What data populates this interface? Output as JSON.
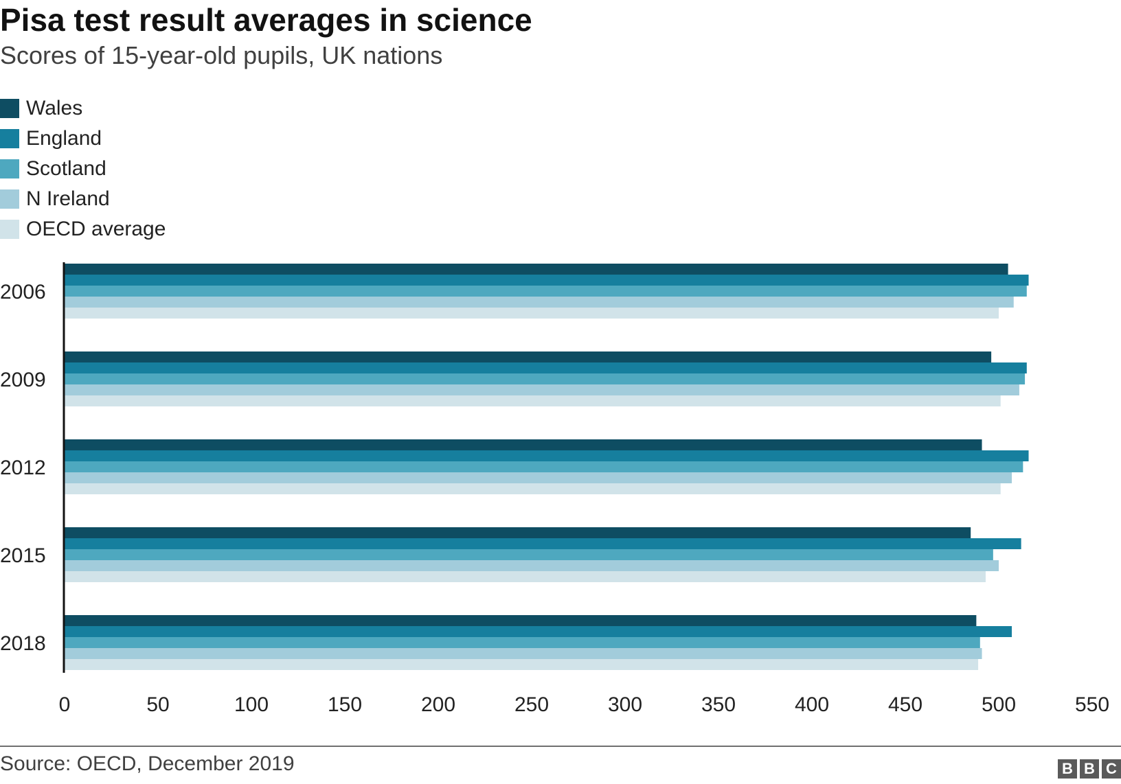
{
  "chart_data": {
    "type": "bar",
    "orientation": "horizontal",
    "title": "Pisa test result averages in science",
    "subtitle": "Scores of 15-year-old pupils, UK nations",
    "categories": [
      "2006",
      "2009",
      "2012",
      "2015",
      "2018"
    ],
    "series": [
      {
        "name": "Wales",
        "color": "#0e4d62",
        "values": [
          505,
          496,
          491,
          485,
          488
        ]
      },
      {
        "name": "England",
        "color": "#167f9e",
        "values": [
          516,
          515,
          516,
          512,
          507
        ]
      },
      {
        "name": "Scotland",
        "color": "#4ea8bf",
        "values": [
          515,
          514,
          513,
          497,
          490
        ]
      },
      {
        "name": "N Ireland",
        "color": "#a2ccdb",
        "values": [
          508,
          511,
          507,
          500,
          491
        ]
      },
      {
        "name": "OECD average",
        "color": "#d1e3e9",
        "values": [
          500,
          501,
          501,
          493,
          489
        ]
      }
    ],
    "x_ticks": [
      "0",
      "50",
      "100",
      "150",
      "200",
      "250",
      "300",
      "350",
      "400",
      "450",
      "500",
      "550"
    ],
    "xlim": [
      0,
      550
    ],
    "xlabel": "",
    "ylabel": "",
    "grid": false,
    "legend": "top-left",
    "source": "Source: OECD, December 2019",
    "logo": "BBC"
  }
}
